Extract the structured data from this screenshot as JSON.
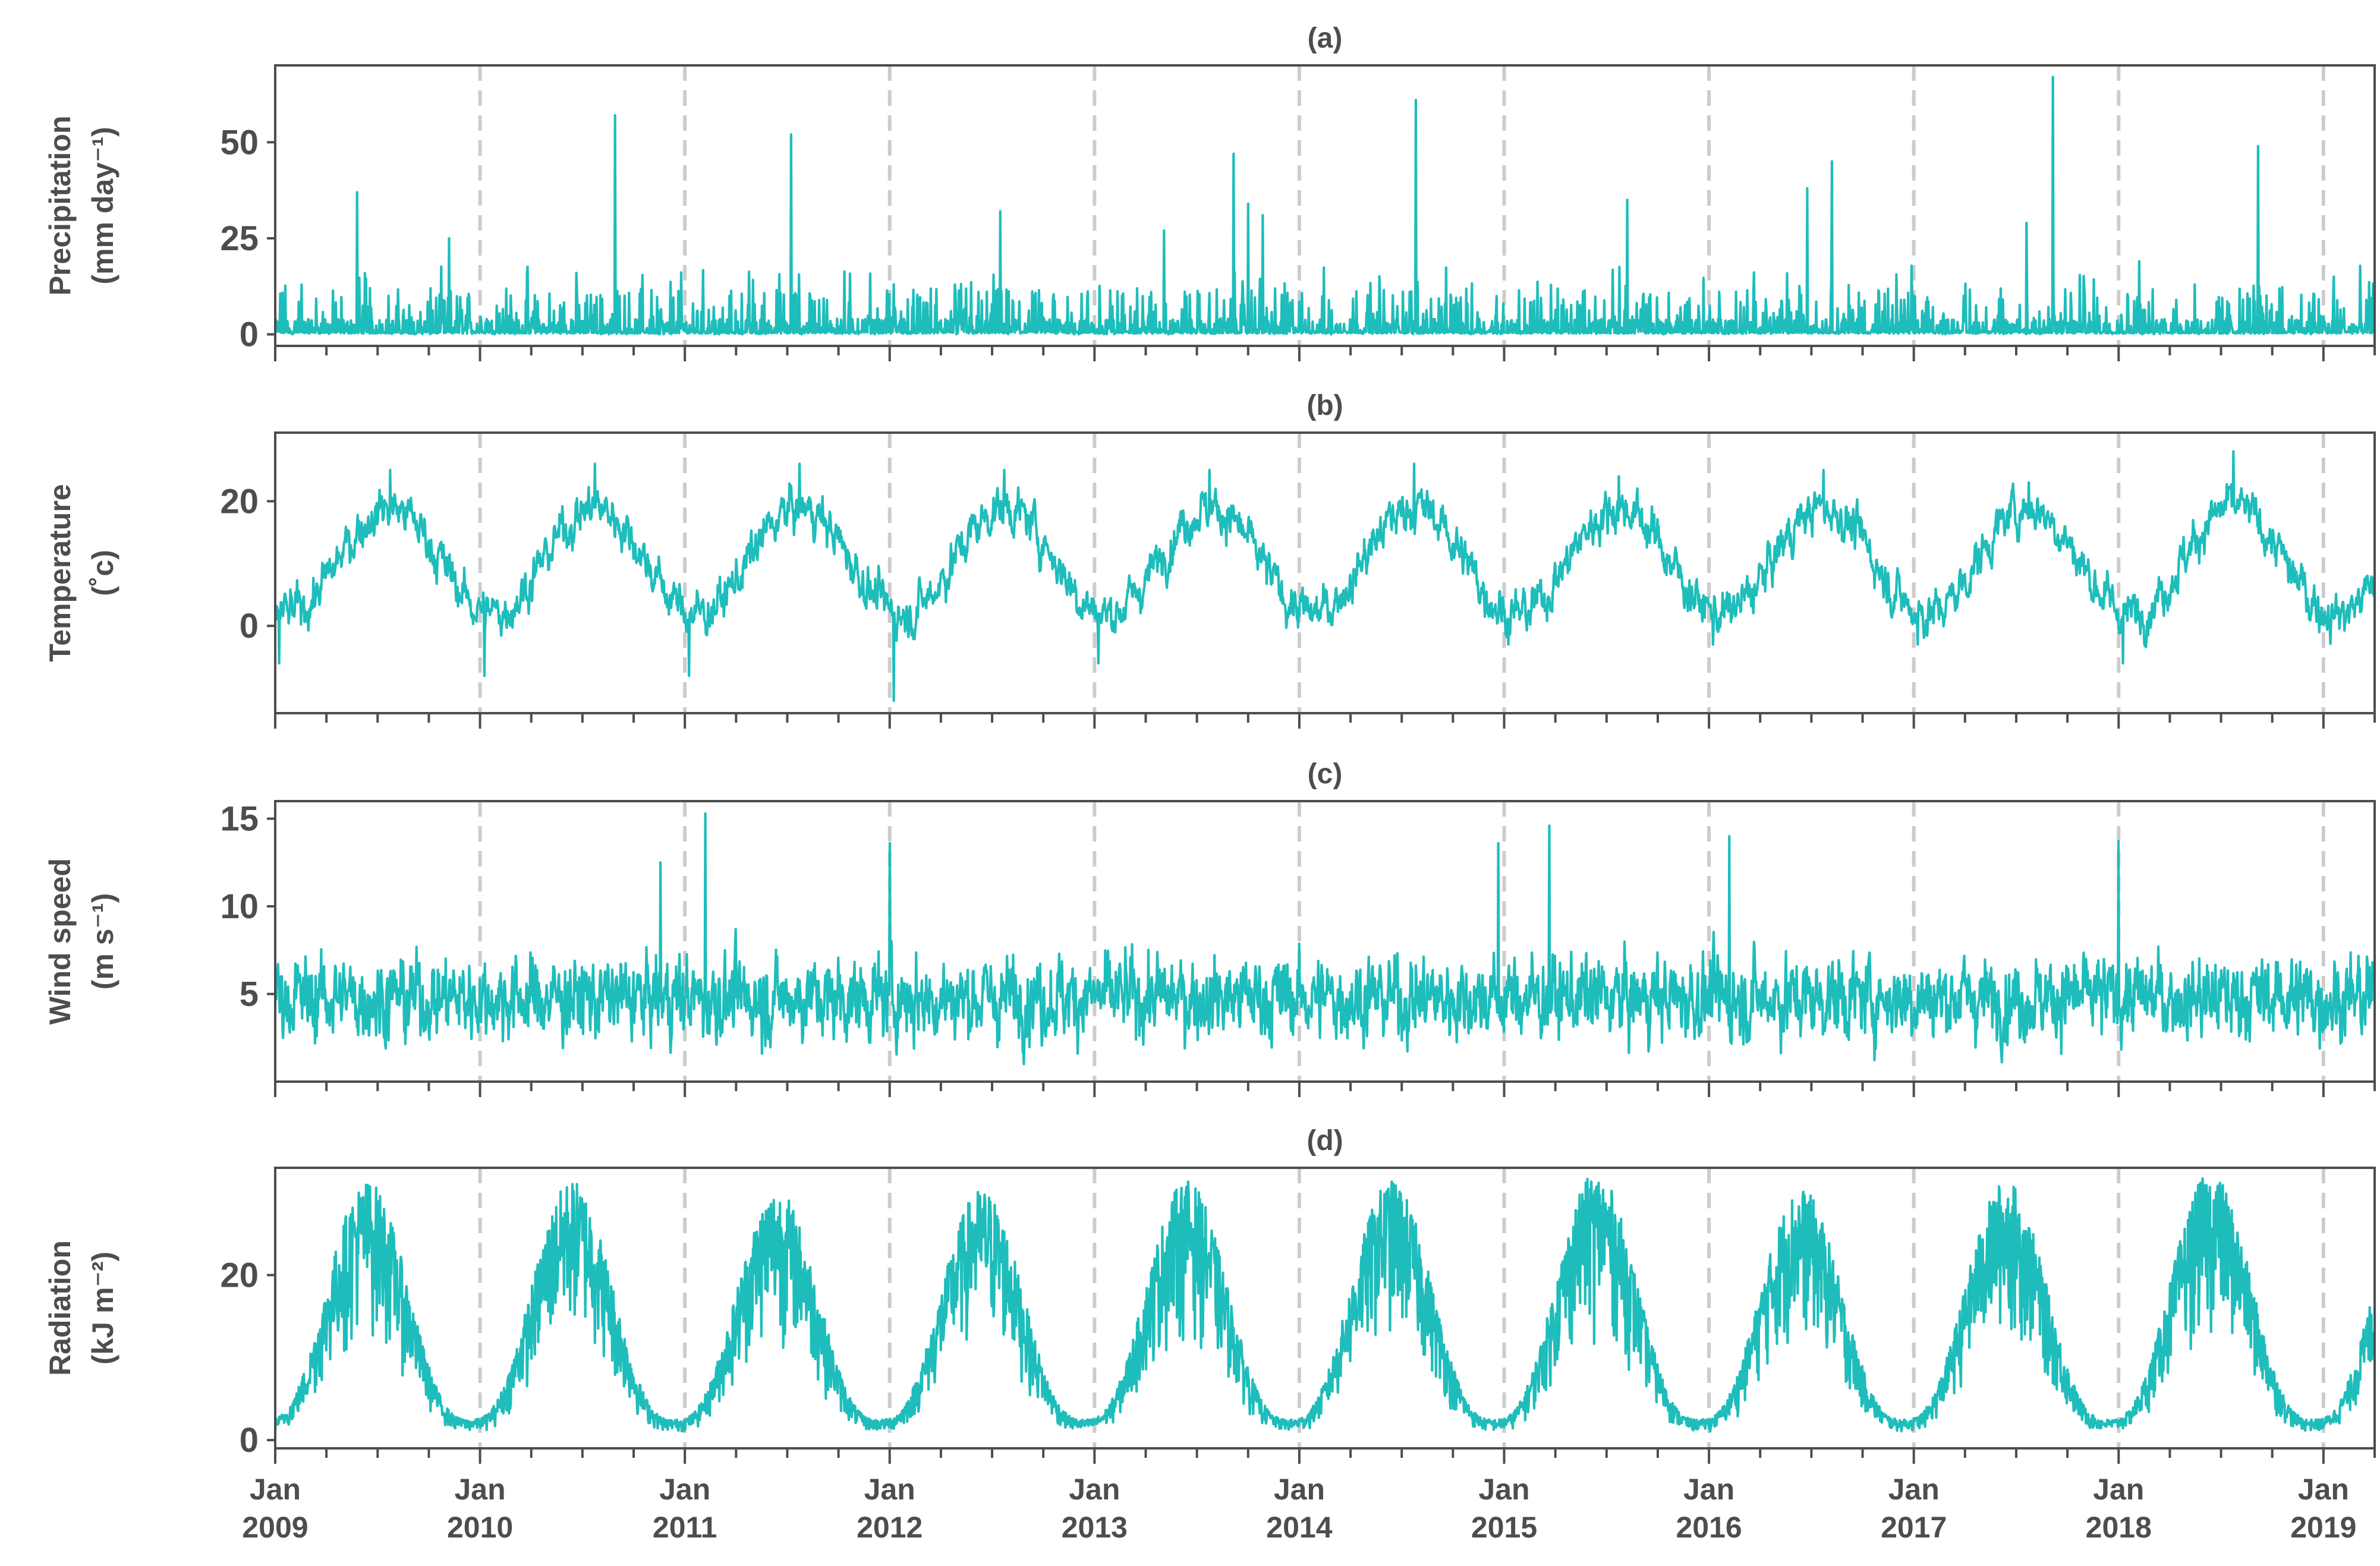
{
  "colors": {
    "series": "#1ebdbb",
    "axis": "#4d4d4d",
    "grid": "#cccccc"
  },
  "chart_data": [
    {
      "type": "line",
      "panel": "(a)",
      "title": "(a)",
      "ylabel": [
        "Precipitation",
        "(mm day⁻¹)"
      ],
      "xlim": [
        2009.0,
        2019.25
      ],
      "ylim": [
        -3,
        70
      ],
      "yticks": [
        0,
        25,
        50
      ],
      "x_gridlines": [
        2010,
        2011,
        2012,
        2013,
        2014,
        2015,
        2016,
        2017,
        2018,
        2019
      ],
      "series": [
        {
          "name": "Precipitation",
          "pattern": "daily rainfall: mostly 0-15 mm/day with sparse spikes",
          "baseline": 0.5,
          "noise": 5,
          "peaks": [
            [
              2009.4,
              37
            ],
            [
              2009.85,
              25
            ],
            [
              2010.66,
              57
            ],
            [
              2011.52,
              52
            ],
            [
              2012.54,
              32
            ],
            [
              2013.68,
              47
            ],
            [
              2013.75,
              34
            ],
            [
              2013.82,
              31
            ],
            [
              2014.57,
              61
            ],
            [
              2015.6,
              35
            ],
            [
              2016.6,
              45
            ],
            [
              2016.48,
              38
            ],
            [
              2017.68,
              67
            ],
            [
              2017.55,
              29
            ],
            [
              2018.68,
              49
            ],
            [
              2013.34,
              27
            ],
            [
              2012.02,
              13
            ],
            [
              2010.47,
              16
            ],
            [
              2018.1,
              19
            ],
            [
              2019.05,
              15
            ]
          ]
        }
      ]
    },
    {
      "type": "line",
      "panel": "(b)",
      "title": "(b)",
      "ylabel": [
        "Temperature",
        "(˚c)"
      ],
      "xlim": [
        2009.0,
        2019.25
      ],
      "ylim": [
        -14,
        31
      ],
      "yticks": [
        0,
        20
      ],
      "x_gridlines": [
        2010,
        2011,
        2012,
        2013,
        2014,
        2015,
        2016,
        2017,
        2018,
        2019
      ],
      "series": [
        {
          "name": "Temperature",
          "pattern": "seasonal cycle",
          "mean": 10.5,
          "amplitude": 8.5,
          "peak_phase": 0.56,
          "noise": 2.8,
          "annual_max": [
            25,
            26,
            26,
            25,
            25,
            26,
            24,
            25,
            23,
            28
          ],
          "annual_min": [
            -6,
            -8,
            -8,
            -12,
            -6,
            2,
            -3,
            -3,
            -3,
            -6
          ]
        }
      ]
    },
    {
      "type": "line",
      "panel": "(c)",
      "title": "(c)",
      "ylabel": [
        "Wind speed",
        "(m s⁻¹)"
      ],
      "xlim": [
        2009.0,
        2019.25
      ],
      "ylim": [
        0,
        16
      ],
      "yticks": [
        5,
        10,
        15
      ],
      "x_gridlines": [
        2010,
        2011,
        2012,
        2013,
        2014,
        2015,
        2016,
        2017,
        2018,
        2019
      ],
      "series": [
        {
          "name": "Wind speed",
          "pattern": "noisy daily wind speed, mostly 2-9 m/s",
          "mean": 4.8,
          "noise": 2.0,
          "peaks": [
            [
              2011.1,
              15.3
            ],
            [
              2012.0,
              13.6
            ],
            [
              2014.97,
              13.6
            ],
            [
              2015.22,
              14.6
            ],
            [
              2016.1,
              14.0
            ],
            [
              2018.0,
              13.7
            ],
            [
              2010.88,
              12.5
            ]
          ]
        }
      ]
    },
    {
      "type": "line",
      "panel": "(d)",
      "title": "(d)",
      "ylabel": [
        "Radiation",
        "(kJ m⁻²)"
      ],
      "xlim": [
        2009.0,
        2019.25
      ],
      "ylim": [
        -1,
        33
      ],
      "yticks": [
        0,
        20
      ],
      "x_gridlines": [
        2010,
        2011,
        2012,
        2013,
        2014,
        2015,
        2016,
        2017,
        2018,
        2019
      ],
      "series": [
        {
          "name": "Radiation",
          "pattern": "strong seasonal cycle with large day-to-day variability",
          "mean": 14,
          "amplitude": 13,
          "peak_phase": 0.45,
          "annual_max": [
            30,
            30,
            29,
            29,
            30,
            30,
            31,
            29,
            30,
            31
          ],
          "minimum": 1
        }
      ]
    }
  ],
  "x_axis": {
    "ticks": [
      {
        "year": 2009,
        "line1": "Jan",
        "line2": "2009"
      },
      {
        "year": 2010,
        "line1": "Jan",
        "line2": "2010"
      },
      {
        "year": 2011,
        "line1": "Jan",
        "line2": "2011"
      },
      {
        "year": 2012,
        "line1": "Jan",
        "line2": "2012"
      },
      {
        "year": 2013,
        "line1": "Jan",
        "line2": "2013"
      },
      {
        "year": 2014,
        "line1": "Jan",
        "line2": "2014"
      },
      {
        "year": 2015,
        "line1": "Jan",
        "line2": "2015"
      },
      {
        "year": 2016,
        "line1": "Jan",
        "line2": "2016"
      },
      {
        "year": 2017,
        "line1": "Jan",
        "line2": "2017"
      },
      {
        "year": 2018,
        "line1": "Jan",
        "line2": "2018"
      },
      {
        "year": 2019,
        "line1": "Jan",
        "line2": "2019"
      }
    ]
  }
}
